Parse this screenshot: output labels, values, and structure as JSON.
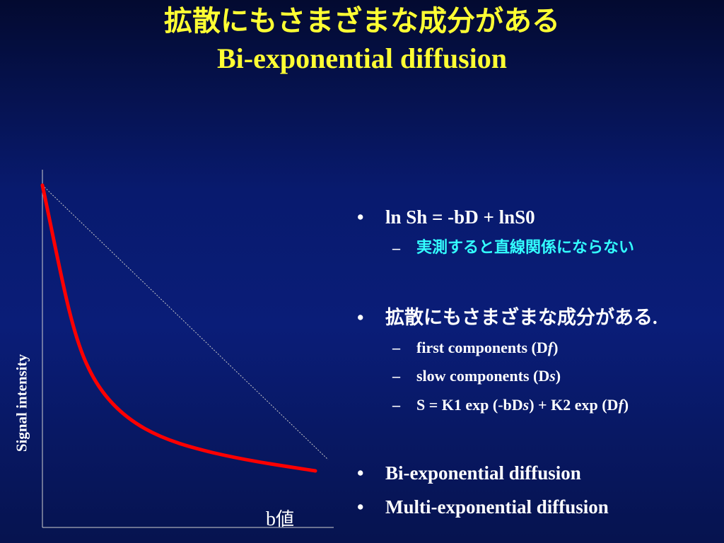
{
  "title": {
    "line1": "拡散にもさまざまな成分がある",
    "line2": "Bi-exponential diffusion"
  },
  "diagram": {
    "ylabel": "Signal intensity",
    "xlabel_prefix": "b",
    "xlabel_suffix": "値",
    "curve_color": "#ff0000",
    "line_color": "#c8c8c8",
    "axis_color": "#d0d0d0"
  },
  "bullets": {
    "marker": "•",
    "dash": "–",
    "b1": {
      "text": "ln Sh = -bD + lnS0"
    },
    "b1_sub1": {
      "text": "実測すると直線関係にならない",
      "color": "#33ffff"
    },
    "b2": {
      "text": "拡散にもさまざまな成分がある",
      "trail": "."
    },
    "b2_sub1": {
      "a": "first components (D",
      "b": "f",
      "c": ")"
    },
    "b2_sub2": {
      "a": "slow components (D",
      "b": "s",
      "c": ")"
    },
    "b2_sub3": {
      "a": "S = K1 exp (-bD",
      "b": "s",
      "c": ") + K2 exp (D",
      "d": "f",
      "e": ")"
    },
    "b3": {
      "text": "Bi-exponential diffusion"
    },
    "b4": {
      "text": "Multi-exponential diffusion"
    }
  }
}
